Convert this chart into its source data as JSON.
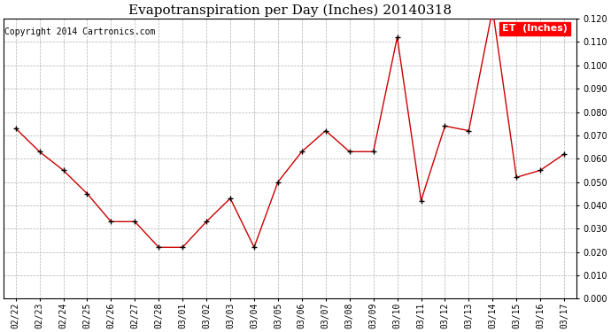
{
  "title": "Evapotranspiration per Day (Inches) 20140318",
  "copyright": "Copyright 2014 Cartronics.com",
  "legend_label": "ET  (Inches)",
  "legend_bg": "#ff0000",
  "legend_text_color": "#ffffff",
  "line_color": "#cc0000",
  "marker_color": "#000000",
  "background_color": "#ffffff",
  "grid_color": "#b0b0b0",
  "dates": [
    "02/22",
    "02/23",
    "02/24",
    "02/25",
    "02/26",
    "02/27",
    "02/28",
    "03/01",
    "03/02",
    "03/03",
    "03/04",
    "03/05",
    "03/06",
    "03/07",
    "03/08",
    "03/09",
    "03/10",
    "03/11",
    "03/12",
    "03/13",
    "03/14",
    "03/15",
    "03/16",
    "03/17"
  ],
  "values": [
    0.073,
    0.063,
    0.055,
    0.045,
    0.033,
    0.033,
    0.022,
    0.022,
    0.033,
    0.043,
    0.022,
    0.05,
    0.063,
    0.072,
    0.063,
    0.063,
    0.112,
    0.042,
    0.074,
    0.072,
    0.124,
    0.052,
    0.055,
    0.062
  ],
  "ylim": [
    0.0,
    0.12
  ],
  "ytick_step": 0.01,
  "title_fontsize": 11,
  "copyright_fontsize": 7,
  "tick_fontsize": 7,
  "legend_fontsize": 8
}
